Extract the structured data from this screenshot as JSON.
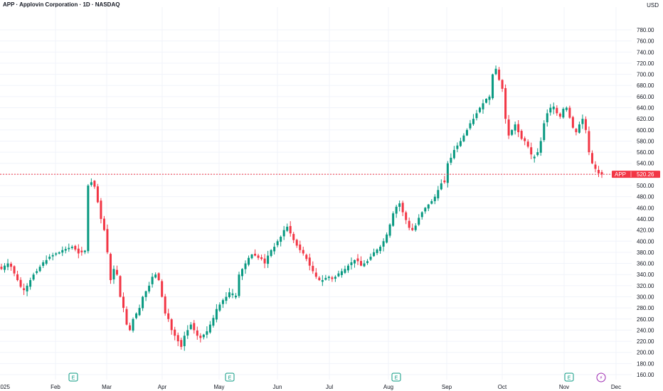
{
  "header": {
    "title": "APP · Applovin Corporation · 1D · NASDAQ",
    "currency": "USD"
  },
  "colors": {
    "up": "#089981",
    "down": "#f23645",
    "grid": "#f0f3fa",
    "price_line": "#f23645",
    "earnings_marker": "#089981",
    "dividend_marker": "#9c27b0"
  },
  "price_label": {
    "symbol": "APP",
    "value": "520.26"
  },
  "chart_data": {
    "type": "candlestick",
    "ylim": [
      160,
      790
    ],
    "y_ticks": [
      "780.00",
      "760.00",
      "740.00",
      "720.00",
      "700.00",
      "680.00",
      "660.00",
      "640.00",
      "620.00",
      "600.00",
      "580.00",
      "560.00",
      "540.00",
      "520.00",
      "500.00",
      "480.00",
      "460.00",
      "440.00",
      "420.00",
      "400.00",
      "380.00",
      "360.00",
      "340.00",
      "320.00",
      "300.00",
      "280.00",
      "260.00",
      "240.00",
      "220.00",
      "200.00",
      "180.00",
      "160.00"
    ],
    "x_labels": [
      "2025",
      "Feb",
      "Mar",
      "Apr",
      "May",
      "Jun",
      "Jul",
      "Aug",
      "Sep",
      "Oct",
      "Nov",
      "Dec"
    ],
    "last_price": 520.26,
    "grid": true,
    "event_markers": [
      {
        "type": "earnings",
        "label": "E",
        "after_month": "Feb"
      },
      {
        "type": "earnings",
        "label": "E",
        "after_month": "May"
      },
      {
        "type": "earnings",
        "label": "E",
        "after_month": "Aug"
      },
      {
        "type": "earnings",
        "label": "E",
        "after_month": "Nov"
      },
      {
        "type": "dividend",
        "label": "⚡",
        "after_month": "Nov"
      }
    ],
    "close_path": [
      350,
      356,
      360,
      354,
      342,
      330,
      318,
      312,
      320,
      330,
      340,
      346,
      354,
      362,
      366,
      372,
      375,
      378,
      380,
      384,
      386,
      388,
      390,
      385,
      378,
      380,
      383,
      500,
      506,
      498,
      470,
      440,
      420,
      380,
      330,
      350,
      340,
      300,
      280,
      250,
      240,
      260,
      270,
      280,
      300,
      310,
      320,
      336,
      340,
      330,
      300,
      270,
      260,
      240,
      230,
      220,
      210,
      230,
      240,
      250,
      240,
      230,
      226,
      232,
      238,
      250,
      262,
      278,
      286,
      294,
      300,
      308,
      306,
      302,
      340,
      350,
      360,
      370,
      376,
      374,
      370,
      368,
      360,
      374,
      384,
      390,
      400,
      408,
      420,
      426,
      414,
      402,
      392,
      384,
      378,
      368,
      356,
      346,
      336,
      330,
      330,
      334,
      336,
      332,
      336,
      342,
      346,
      350,
      356,
      362,
      366,
      364,
      356,
      360,
      364,
      372,
      380,
      385,
      390,
      400,
      412,
      430,
      450,
      462,
      468,
      452,
      438,
      424,
      420,
      428,
      442,
      452,
      460,
      466,
      472,
      480,
      492,
      504,
      506,
      540,
      550,
      564,
      572,
      580,
      590,
      600,
      612,
      620,
      630,
      640,
      648,
      656,
      660,
      700,
      710,
      690,
      674,
      620,
      590,
      600,
      610,
      596,
      584,
      580,
      570,
      556,
      552,
      560,
      580,
      612,
      630,
      640,
      642,
      630,
      624,
      638,
      640,
      622,
      604,
      596,
      610,
      620,
      600,
      560,
      540,
      530,
      522,
      520
    ]
  }
}
